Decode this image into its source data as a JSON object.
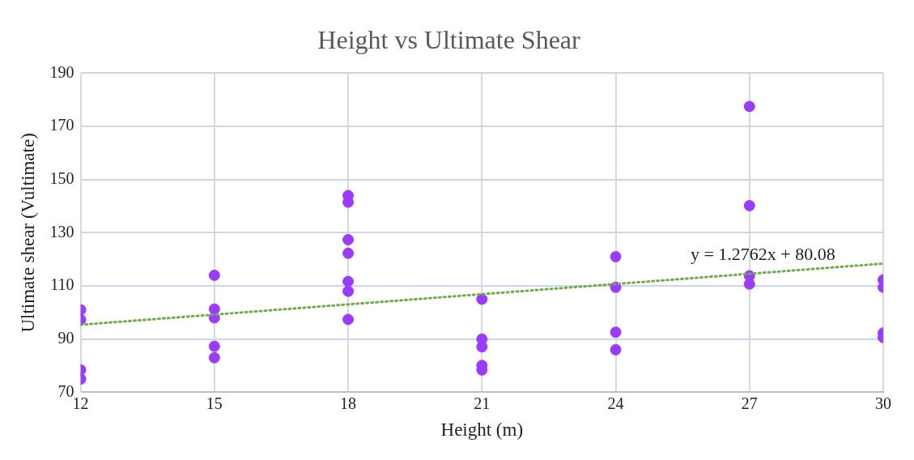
{
  "chart_data": {
    "type": "scatter",
    "title": "Height vs Ultimate Shear",
    "xlabel": "Height (m)",
    "ylabel": "Ultimate shear (Vultimate)",
    "xlim": [
      12,
      30
    ],
    "xticks": [
      12,
      15,
      18,
      21,
      24,
      27,
      30
    ],
    "ylim": [
      70,
      190
    ],
    "yticks": [
      70,
      90,
      110,
      130,
      150,
      170,
      190
    ],
    "grid": true,
    "legend": false,
    "marker": "circle",
    "series": [
      {
        "color": "#9b3bff",
        "x": [
          12,
          12,
          12,
          12,
          15,
          15,
          15,
          15,
          15,
          18,
          18,
          18,
          18,
          18,
          18,
          18,
          21,
          21,
          21,
          21,
          21,
          24,
          24,
          24,
          24,
          27,
          27,
          27,
          27,
          30,
          30,
          30,
          30
        ],
        "values": [
          101,
          97.3,
          78.4,
          75,
          114,
          101.3,
          98,
          87.3,
          83,
          144,
          141.5,
          127.4,
          122.3,
          111.7,
          108,
          97.4,
          105,
          90,
          87.1,
          80.1,
          78.4,
          121,
          109.5,
          92.6,
          86,
          177.5,
          140.2,
          113.8,
          110.7,
          112.3,
          109.5,
          92.3,
          90.6
        ]
      },
      {
        "type": "line",
        "color": "#70ad47",
        "line_style": "dotted",
        "marker": "none",
        "x": [
          12,
          30
        ],
        "values": [
          95.4,
          118.4
        ]
      }
    ],
    "annotations": [
      "y = 1.2762x + 80.08"
    ]
  }
}
